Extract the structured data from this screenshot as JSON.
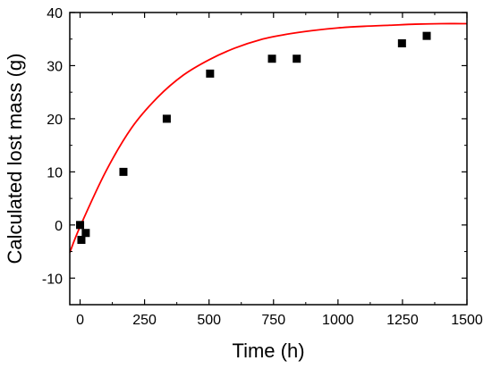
{
  "chart_data": {
    "type": "scatter",
    "title": "",
    "xlabel": "Time (h)",
    "ylabel": "Calculated lost mass (g)",
    "xlim": [
      -40,
      1500
    ],
    "ylim": [
      -15,
      40
    ],
    "x_ticks": [
      0,
      250,
      500,
      750,
      1000,
      1250,
      1500
    ],
    "y_ticks": [
      -10,
      0,
      10,
      20,
      30,
      40
    ],
    "x_tick_labels": [
      "0",
      "250",
      "500",
      "750",
      "1000",
      "1250",
      "1500"
    ],
    "y_tick_labels": [
      "-10",
      "0",
      "10",
      "20",
      "30",
      "40"
    ],
    "grid": false,
    "legend": "none",
    "series": [
      {
        "kind": "points",
        "marker": "square",
        "color": "#000000",
        "x": [
          0,
          5,
          22,
          168,
          336,
          504,
          744,
          840,
          1248,
          1344
        ],
        "y": [
          0,
          -2.8,
          -1.5,
          10,
          20,
          28.5,
          31.3,
          31.3,
          34.2,
          35.6
        ]
      },
      {
        "kind": "line",
        "color": "#ff0000",
        "x": [
          -40,
          0,
          100,
          200,
          300,
          400,
          500,
          600,
          700,
          800,
          900,
          1000,
          1100,
          1200,
          1300,
          1400,
          1500
        ],
        "y": [
          -5.2,
          -0.3,
          10.1,
          18.3,
          24.0,
          28.2,
          31.1,
          33.3,
          34.9,
          35.9,
          36.6,
          37.1,
          37.4,
          37.6,
          37.8,
          37.9,
          37.9
        ]
      }
    ]
  }
}
